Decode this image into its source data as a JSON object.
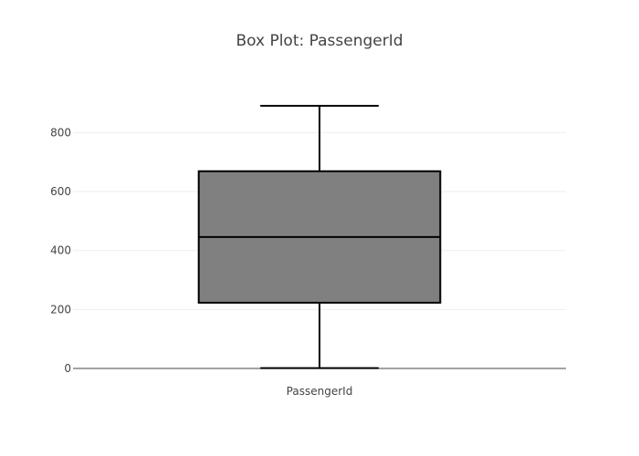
{
  "chart_data": {
    "type": "box",
    "title": "Box Plot: PassengerId",
    "xlabel": "",
    "ylabel": "",
    "categories": [
      "PassengerId"
    ],
    "boxes": [
      {
        "category": "PassengerId",
        "min": 1,
        "q1": 223,
        "median": 446,
        "q3": 669,
        "max": 891
      }
    ],
    "y_ticks": [
      0,
      200,
      400,
      600,
      800
    ],
    "ylim": [
      0,
      920
    ],
    "grid": true,
    "legend": "none",
    "colors": {
      "box_fill": "#808080",
      "box_stroke": "#000000",
      "grid": "#eeeeee",
      "text": "#444444"
    }
  }
}
